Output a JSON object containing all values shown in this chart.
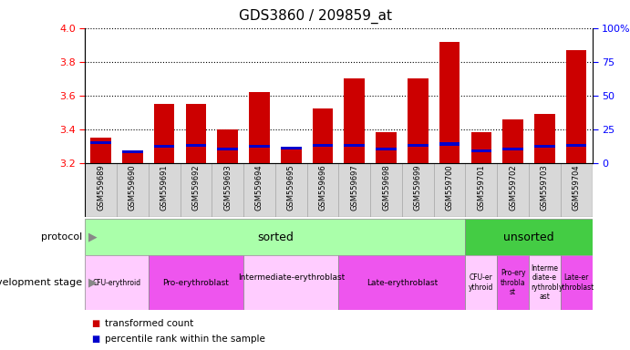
{
  "title": "GDS3860 / 209859_at",
  "samples": [
    "GSM559689",
    "GSM559690",
    "GSM559691",
    "GSM559692",
    "GSM559693",
    "GSM559694",
    "GSM559695",
    "GSM559696",
    "GSM559697",
    "GSM559698",
    "GSM559699",
    "GSM559700",
    "GSM559701",
    "GSM559702",
    "GSM559703",
    "GSM559704"
  ],
  "transformed_count": [
    3.35,
    3.27,
    3.55,
    3.55,
    3.4,
    3.62,
    3.29,
    3.52,
    3.7,
    3.38,
    3.7,
    3.92,
    3.38,
    3.46,
    3.49,
    3.87
  ],
  "percentile_values": [
    15,
    8,
    12,
    13,
    10,
    12,
    11,
    13,
    13,
    10,
    13,
    14,
    9,
    10,
    12,
    13
  ],
  "ymin": 3.2,
  "ymax": 4.0,
  "yticks_left": [
    3.2,
    3.4,
    3.6,
    3.8,
    4.0
  ],
  "yticks_right": [
    0,
    25,
    50,
    75,
    100
  ],
  "bar_color": "#cc0000",
  "percentile_color": "#0000cc",
  "protocol_sorted_color": "#aaffaa",
  "protocol_unsorted_color": "#44cc44",
  "dev_stage_light": "#ff99ff",
  "dev_stage_dark": "#ee44ee",
  "xtick_bg": "#d8d8d8",
  "legend_red": "transformed count",
  "legend_blue": "percentile rank within the sample",
  "dev_stages": [
    {
      "label": "CFU-erythroid",
      "start": 0,
      "end": 2,
      "color": "#ffccff"
    },
    {
      "label": "Pro-erythroblast",
      "start": 2,
      "end": 5,
      "color": "#ee55ee"
    },
    {
      "label": "Intermediate-erythroblast\n",
      "start": 5,
      "end": 8,
      "color": "#ffccff"
    },
    {
      "label": "Late-erythroblast",
      "start": 8,
      "end": 12,
      "color": "#ee55ee"
    },
    {
      "label": "CFU-er\nythroid",
      "start": 12,
      "end": 13,
      "color": "#ffccff"
    },
    {
      "label": "Pro-ery\nthrobla\nst",
      "start": 13,
      "end": 14,
      "color": "#ee55ee"
    },
    {
      "label": "Interme\ndiate-e\nrythrobl\nast",
      "start": 14,
      "end": 15,
      "color": "#ffccff"
    },
    {
      "label": "Late-er\nythroblast",
      "start": 15,
      "end": 16,
      "color": "#ee55ee"
    }
  ]
}
